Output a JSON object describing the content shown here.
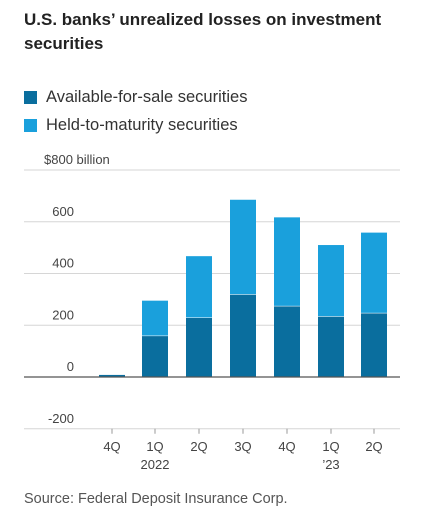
{
  "title": "U.S. banks’ unrealized losses on investment securities",
  "legend": [
    {
      "label": "Available-for-sale securities",
      "color": "#0a6e9e"
    },
    {
      "label": "Held-to-maturity securities",
      "color": "#1aa0dc"
    }
  ],
  "source": "Source: Federal Deposit Insurance Corp.",
  "chart_data": {
    "type": "bar",
    "stacked": true,
    "title": "U.S. banks’ unrealized losses on investment securities",
    "categories": [
      "4Q",
      "1Q",
      "2Q",
      "3Q",
      "4Q",
      "1Q",
      "2Q"
    ],
    "category_sublabels": [
      "",
      "2022",
      "",
      "",
      "",
      "’23",
      ""
    ],
    "series": [
      {
        "name": "Available-for-sale securities",
        "color": "#0a6e9e",
        "values": [
          8,
          160,
          230,
          320,
          275,
          235,
          248
        ]
      },
      {
        "name": "Held-to-maturity securities",
        "color": "#1aa0dc",
        "values": [
          0,
          135,
          237,
          365,
          342,
          275,
          310
        ]
      }
    ],
    "y_ticks": [
      {
        "value": 800,
        "label": "$800 billion"
      },
      {
        "value": 600,
        "label": "600"
      },
      {
        "value": 400,
        "label": "400"
      },
      {
        "value": 200,
        "label": "200"
      },
      {
        "value": 0,
        "label": "0"
      },
      {
        "value": -200,
        "label": "-200"
      }
    ],
    "ylim": [
      -200,
      800
    ],
    "grid": true,
    "legend_position": "top-left"
  }
}
